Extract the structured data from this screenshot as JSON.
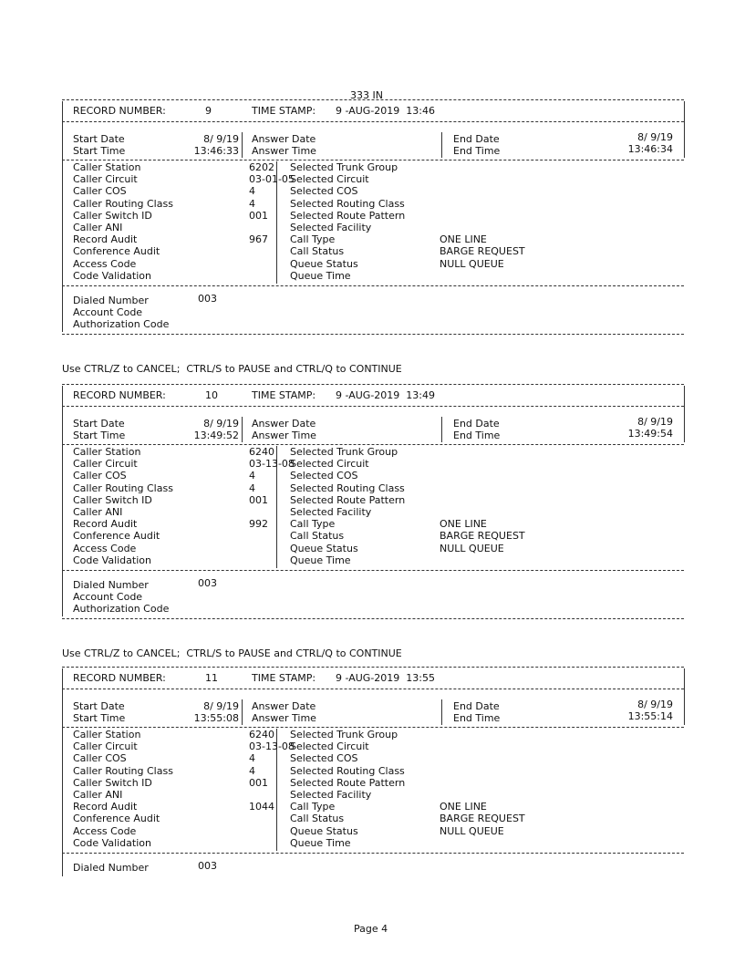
{
  "header": {
    "title": "333 IN"
  },
  "labels": {
    "record_number": "RECORD NUMBER:",
    "time_stamp": "TIME STAMP:",
    "start_date": "Start Date",
    "start_time": "Start Time",
    "answer_date": "Answer Date",
    "answer_time": "Answer Time",
    "end_date": "End Date",
    "end_time": "End Time",
    "left_fields": [
      "Caller Station",
      "Caller Circuit",
      "Caller COS",
      "Caller Routing Class",
      "Caller Switch ID",
      "Caller ANI",
      "Record Audit",
      "Conference Audit",
      "Access Code",
      "Code Validation"
    ],
    "right_fields": [
      "Selected Trunk Group",
      "Selected Circuit",
      "Selected COS",
      "Selected Routing Class",
      "Selected Route Pattern",
      "Selected Facility",
      "Call Type",
      "Call Status",
      "Queue Status",
      "Queue Time"
    ],
    "dialed_number": "Dialed Number",
    "account_code": "Account Code",
    "authorization_code": "Authorization Code"
  },
  "records": [
    {
      "number": "9",
      "time_stamp": "9 -AUG-2019  13:46",
      "start_date": "8/ 9/19",
      "start_time": "13:46:33",
      "end_date": "8/ 9/19",
      "end_time": "13:46:34",
      "left_values": [
        "6202",
        "03-01-05",
        "4",
        "4",
        "001",
        "",
        "967",
        "",
        "",
        ""
      ],
      "right_values": [
        "",
        "",
        "",
        "",
        "",
        "",
        "ONE LINE",
        "BARGE REQUEST",
        "NULL QUEUE",
        ""
      ],
      "dialed_number": "003",
      "footer": "Use CTRL/Z to CANCEL;  CTRL/S to PAUSE and CTRL/Q to CONTINUE"
    },
    {
      "number": "10",
      "time_stamp": "9 -AUG-2019  13:49",
      "start_date": "8/ 9/19",
      "start_time": "13:49:52",
      "end_date": "8/ 9/19",
      "end_time": "13:49:54",
      "left_values": [
        "6240",
        "03-13-08",
        "4",
        "4",
        "001",
        "",
        "992",
        "",
        "",
        ""
      ],
      "right_values": [
        "",
        "",
        "",
        "",
        "",
        "",
        "ONE LINE",
        "BARGE REQUEST",
        "NULL QUEUE",
        ""
      ],
      "dialed_number": "003",
      "footer": "Use CTRL/Z to CANCEL;  CTRL/S to PAUSE and CTRL/Q to CONTINUE"
    },
    {
      "number": "11",
      "time_stamp": "9 -AUG-2019  13:55",
      "start_date": "8/ 9/19",
      "start_time": "13:55:08",
      "end_date": "8/ 9/19",
      "end_time": "13:55:14",
      "left_values": [
        "6240",
        "03-13-08",
        "4",
        "4",
        "001",
        "",
        "1044",
        "",
        "",
        ""
      ],
      "right_values": [
        "",
        "",
        "",
        "",
        "",
        "",
        "ONE LINE",
        "BARGE REQUEST",
        "NULL QUEUE",
        ""
      ],
      "dialed_number": "003",
      "truncated": true
    }
  ],
  "page": {
    "label": "Page 4"
  }
}
